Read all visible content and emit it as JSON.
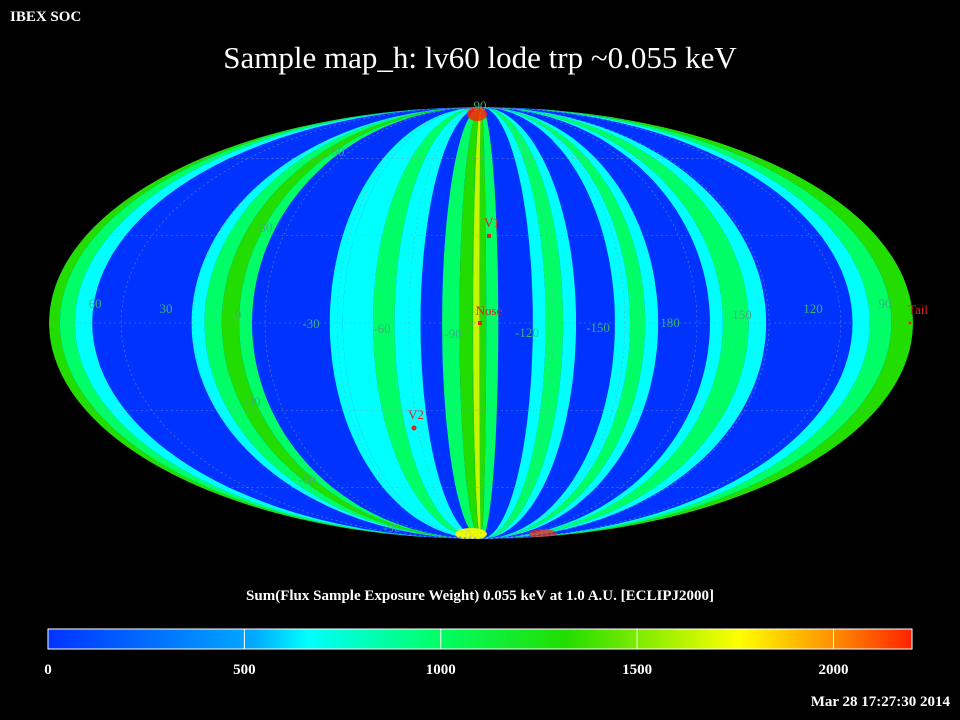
{
  "header": {
    "org": "IBEX SOC",
    "title": "Sample map_h: lv60 lode trp ~0.055 keV"
  },
  "map": {
    "projection": "mollweide",
    "palette": [
      "#0033ff",
      "#00ffff",
      "#00ff66",
      "#22dd00",
      "#ffff00",
      "#ff2200"
    ],
    "label_color": "#3bb07a",
    "marker_color": "#dd2222",
    "lat_labels": [
      "90",
      "60",
      "30",
      "-30",
      "-60",
      "-90"
    ],
    "lon_labels": [
      "60",
      "30",
      "0",
      "-30",
      "-60",
      "-90",
      "-120",
      "-150",
      "180",
      "150",
      "120",
      "90"
    ],
    "markers": [
      {
        "id": "v1",
        "label": "V1",
        "symbol": "square"
      },
      {
        "id": "nose",
        "label": "Nose",
        "symbol": "square"
      },
      {
        "id": "v2",
        "label": "V2",
        "symbol": "circle"
      },
      {
        "id": "tail",
        "label": "Tail",
        "symbol": "dot"
      }
    ]
  },
  "colorbar": {
    "title": "Sum(Flux Sample Exposure Weight)  0.055 keV at 1.0 A.U. [ECLIPJ2000]",
    "min": 0,
    "max": 2200,
    "ticks": [
      "0",
      "500",
      "1000",
      "1500",
      "2000"
    ]
  },
  "footer": {
    "timestamp": "Mar 28 17:27:30 2014"
  }
}
